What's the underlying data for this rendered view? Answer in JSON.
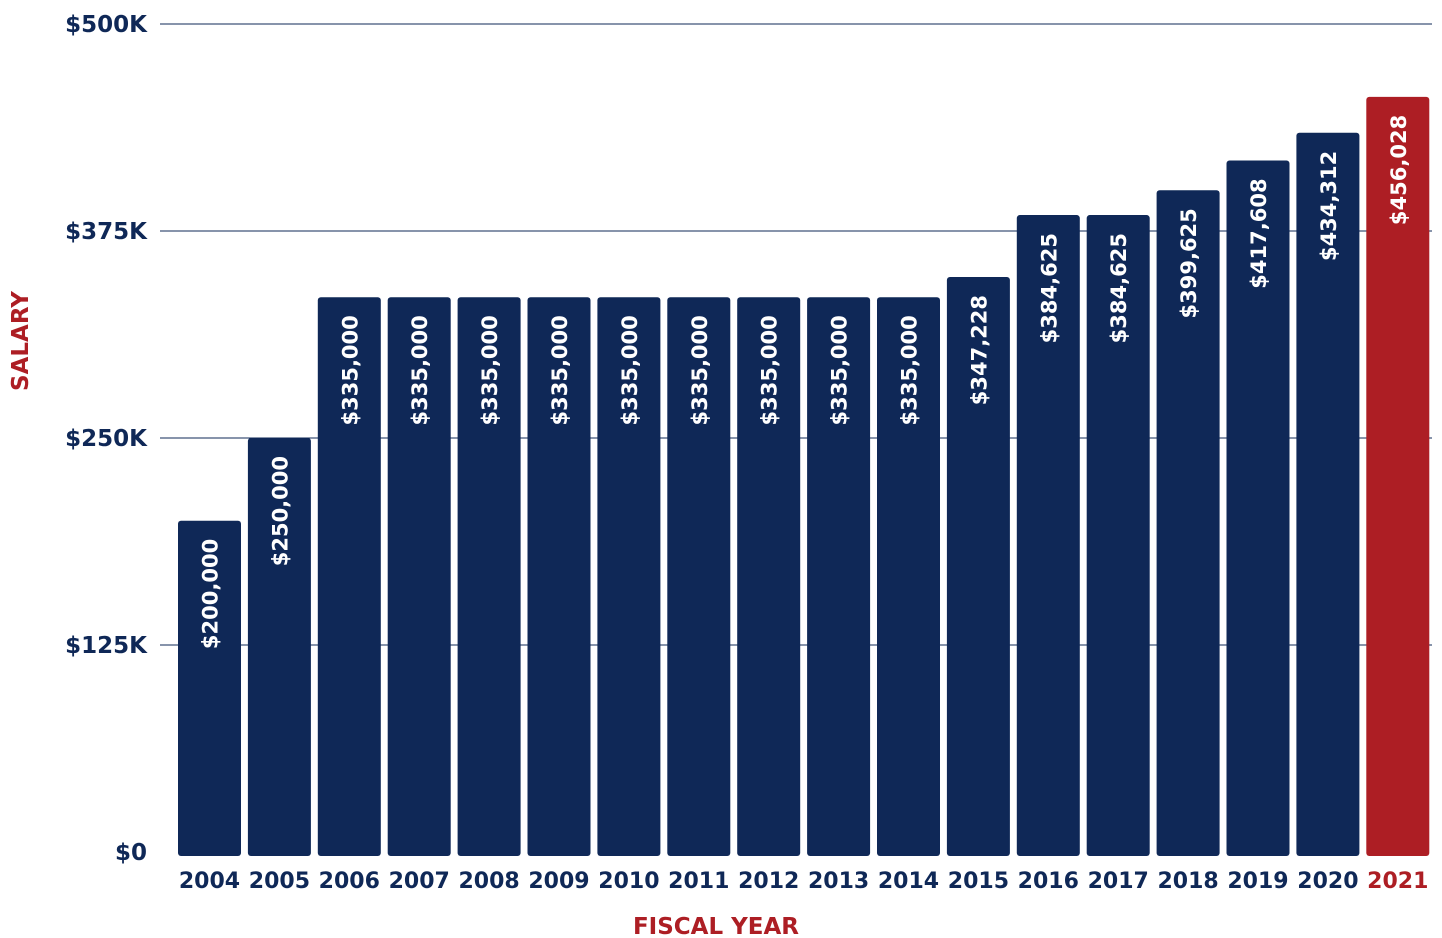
{
  "chart_data": {
    "type": "bar",
    "xlabel": "FISCAL YEAR",
    "ylabel": "SALARY",
    "ylim": [
      0,
      500000
    ],
    "yticks": [
      {
        "value": 0,
        "label": "$0"
      },
      {
        "value": 125000,
        "label": "$125K"
      },
      {
        "value": 250000,
        "label": "$250K"
      },
      {
        "value": 375000,
        "label": "$375K"
      },
      {
        "value": 500000,
        "label": "$500K"
      }
    ],
    "grid": true,
    "categories": [
      "2004",
      "2005",
      "2006",
      "2007",
      "2008",
      "2009",
      "2010",
      "2011",
      "2012",
      "2013",
      "2014",
      "2015",
      "2016",
      "2017",
      "2018",
      "2019",
      "2020",
      "2021"
    ],
    "values": [
      200000,
      250000,
      335000,
      335000,
      335000,
      335000,
      335000,
      335000,
      335000,
      335000,
      335000,
      347228,
      384625,
      384625,
      399625,
      417608,
      434312,
      456028
    ],
    "data_labels": [
      "$200,000",
      "$250,000",
      "$335,000",
      "$335,000",
      "$335,000",
      "$335,000",
      "$335,000",
      "$335,000",
      "$335,000",
      "$335,000",
      "$335,000",
      "$347,228",
      "$384,625",
      "$384,625",
      "$399,625",
      "$417,608",
      "$434,312",
      "$456,028"
    ],
    "highlight_index": 17,
    "colors": {
      "bar": "#0f2857",
      "highlight": "#ad1e24",
      "axis_text": "#0f2857",
      "axis_title": "#ad1e24",
      "grid": "#0f2857",
      "label_text": "#ffffff"
    }
  }
}
